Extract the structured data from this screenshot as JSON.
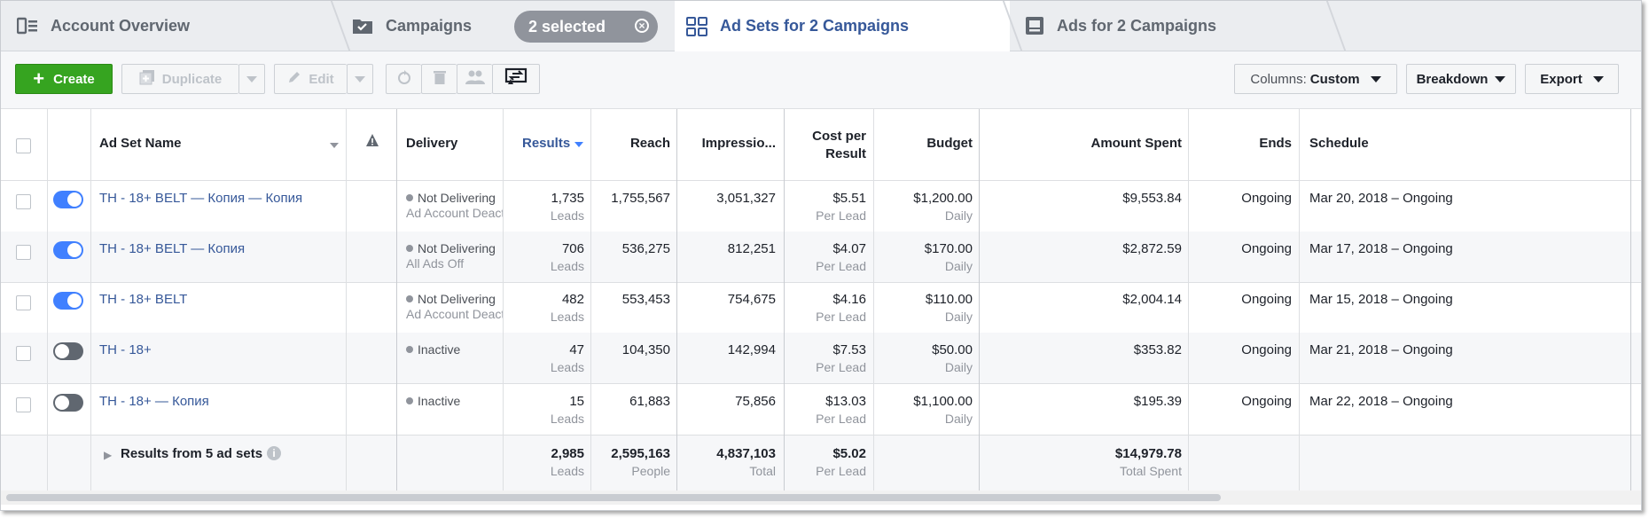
{
  "tabs": {
    "account_overview": "Account Overview",
    "campaigns": "Campaigns",
    "selected_pill": "2 selected",
    "ad_sets": "Ad Sets for 2 Campaigns",
    "ads": "Ads for 2 Campaigns"
  },
  "toolbar": {
    "create": "Create",
    "duplicate": "Duplicate",
    "edit": "Edit",
    "columns_prefix": "Columns:",
    "columns_value": "Custom",
    "breakdown": "Breakdown",
    "export": "Export"
  },
  "headers": {
    "name": "Ad Set Name",
    "delivery": "Delivery",
    "results": "Results",
    "reach": "Reach",
    "impressions": "Impressio...",
    "cost_line1": "Cost per",
    "cost_line2": "Result",
    "budget": "Budget",
    "amount_spent": "Amount Spent",
    "ends": "Ends",
    "schedule": "Schedule"
  },
  "rows": [
    {
      "name": "TH - 18+ BELT — Копия — Копия",
      "delivery": "Not Delivering",
      "delivery_sub": "Ad Account Deactivated",
      "results": "1,735",
      "results_sub": "Leads",
      "reach": "1,755,567",
      "impressions": "3,051,327",
      "cost": "$5.51",
      "cost_sub": "Per Lead",
      "budget": "$1,200.00",
      "budget_sub": "Daily",
      "spent": "$9,553.84",
      "ends": "Ongoing",
      "schedule": "Mar 20, 2018 – Ongoing"
    },
    {
      "name": "TH - 18+ BELT — Копия",
      "delivery": "Not Delivering",
      "delivery_sub": "All Ads Off",
      "results": "706",
      "results_sub": "Leads",
      "reach": "536,275",
      "impressions": "812,251",
      "cost": "$4.07",
      "cost_sub": "Per Lead",
      "budget": "$170.00",
      "budget_sub": "Daily",
      "spent": "$2,872.59",
      "ends": "Ongoing",
      "schedule": "Mar 17, 2018 – Ongoing"
    },
    {
      "name": "TH - 18+ BELT",
      "delivery": "Not Delivering",
      "delivery_sub": "Ad Account Deactivated",
      "results": "482",
      "results_sub": "Leads",
      "reach": "553,453",
      "impressions": "754,675",
      "cost": "$4.16",
      "cost_sub": "Per Lead",
      "budget": "$110.00",
      "budget_sub": "Daily",
      "spent": "$2,004.14",
      "ends": "Ongoing",
      "schedule": "Mar 15, 2018 – Ongoing"
    },
    {
      "name": "TH - 18+",
      "delivery": "Inactive",
      "delivery_sub": "",
      "results": "47",
      "results_sub": "Leads",
      "reach": "104,350",
      "impressions": "142,994",
      "cost": "$7.53",
      "cost_sub": "Per Lead",
      "budget": "$50.00",
      "budget_sub": "Daily",
      "spent": "$353.82",
      "ends": "Ongoing",
      "schedule": "Mar 21, 2018 – Ongoing"
    },
    {
      "name": "TH - 18+ — Копия",
      "delivery": "Inactive",
      "delivery_sub": "",
      "results": "15",
      "results_sub": "Leads",
      "reach": "61,883",
      "impressions": "75,856",
      "cost": "$13.03",
      "cost_sub": "Per Lead",
      "budget": "$1,100.00",
      "budget_sub": "Daily",
      "spent": "$195.39",
      "ends": "Ongoing",
      "schedule": "Mar 22, 2018 – Ongoing"
    }
  ],
  "toggles": [
    true,
    true,
    true,
    false,
    false
  ],
  "footer": {
    "label": "Results from 5 ad sets",
    "results": "2,985",
    "results_sub": "Leads",
    "reach": "2,595,163",
    "reach_sub": "People",
    "impressions": "4,837,103",
    "impressions_sub": "Total",
    "cost": "$5.02",
    "cost_sub": "Per Lead",
    "spent": "$14,979.78",
    "spent_sub": "Total Spent"
  },
  "colors": {
    "accent": "#365899",
    "create": "#36a420",
    "toggle_on": "#4080ff"
  }
}
